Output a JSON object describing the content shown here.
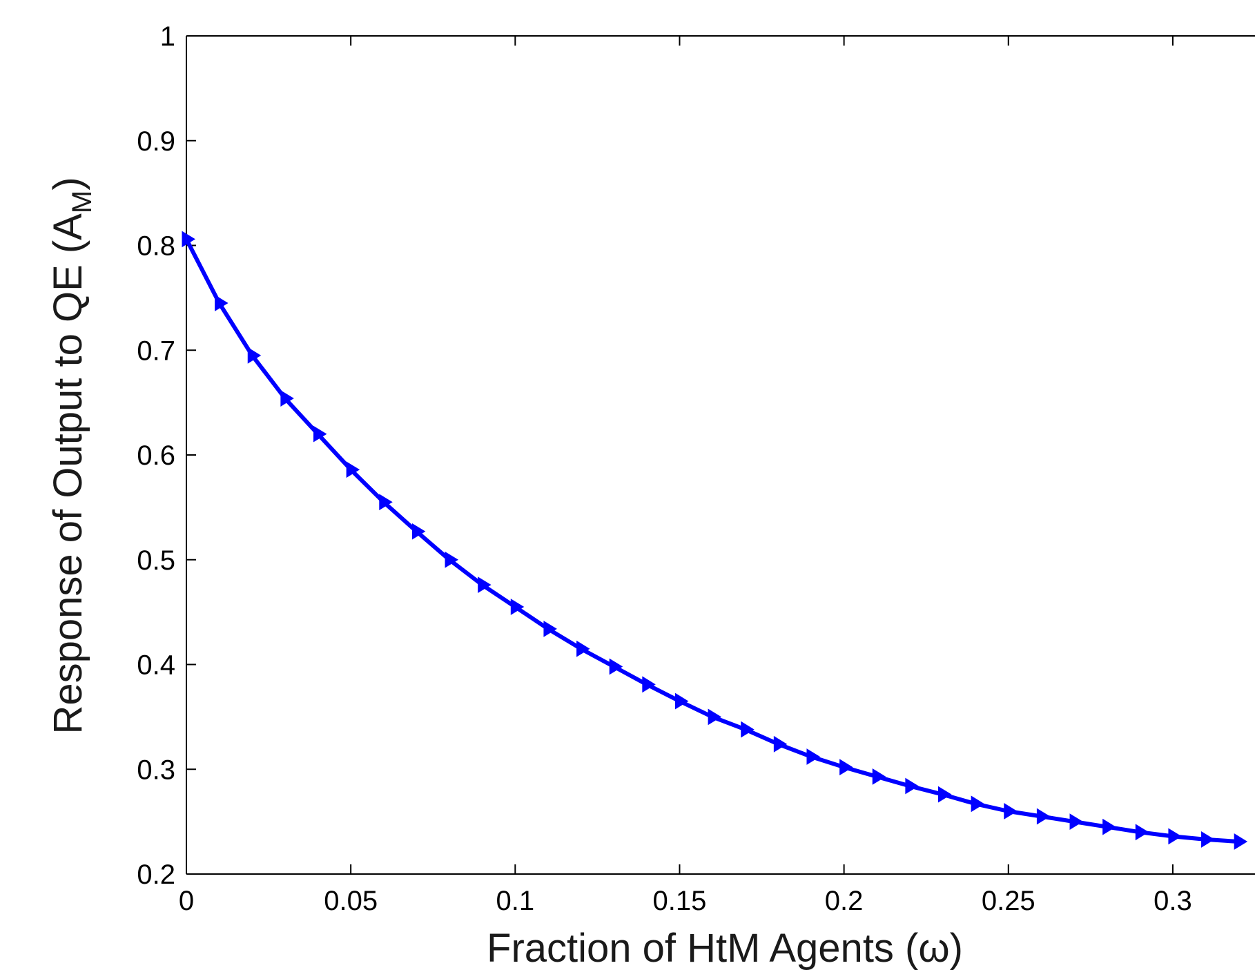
{
  "chart_data": {
    "type": "line",
    "xlabel": "Fraction of HtM Agents (ω)",
    "ylabel_main": "Response of Output to QE (A",
    "ylabel_sub": "M",
    "ylabel_close": ")",
    "xlim": [
      0,
      0.325
    ],
    "ylim": [
      0.2,
      1.0
    ],
    "xticks": [
      0,
      0.05,
      0.1,
      0.15,
      0.2,
      0.25,
      0.3
    ],
    "xtick_labels": [
      "0",
      "0.05",
      "0.1",
      "0.15",
      "0.2",
      "0.25",
      "0.3"
    ],
    "yticks": [
      0.2,
      0.3,
      0.4,
      0.5,
      0.6,
      0.7,
      0.8,
      0.9,
      1.0
    ],
    "ytick_labels": [
      "0.2",
      "0.3",
      "0.4",
      "0.5",
      "0.6",
      "0.7",
      "0.8",
      "0.9",
      "1"
    ],
    "grid": false,
    "series": [
      {
        "color": "#0000ff",
        "marker": "triangle-right",
        "x": [
          0,
          0.01,
          0.02,
          0.03,
          0.04,
          0.05,
          0.06,
          0.07,
          0.08,
          0.09,
          0.1,
          0.11,
          0.12,
          0.13,
          0.14,
          0.15,
          0.16,
          0.17,
          0.18,
          0.19,
          0.2,
          0.21,
          0.22,
          0.23,
          0.24,
          0.25,
          0.26,
          0.27,
          0.28,
          0.29,
          0.3,
          0.31,
          0.32
        ],
        "y": [
          0.806,
          0.745,
          0.695,
          0.654,
          0.62,
          0.586,
          0.555,
          0.527,
          0.5,
          0.476,
          0.455,
          0.434,
          0.415,
          0.398,
          0.381,
          0.365,
          0.35,
          0.338,
          0.324,
          0.312,
          0.302,
          0.293,
          0.284,
          0.276,
          0.267,
          0.26,
          0.255,
          0.25,
          0.245,
          0.24,
          0.236,
          0.233,
          0.231
        ]
      }
    ]
  }
}
